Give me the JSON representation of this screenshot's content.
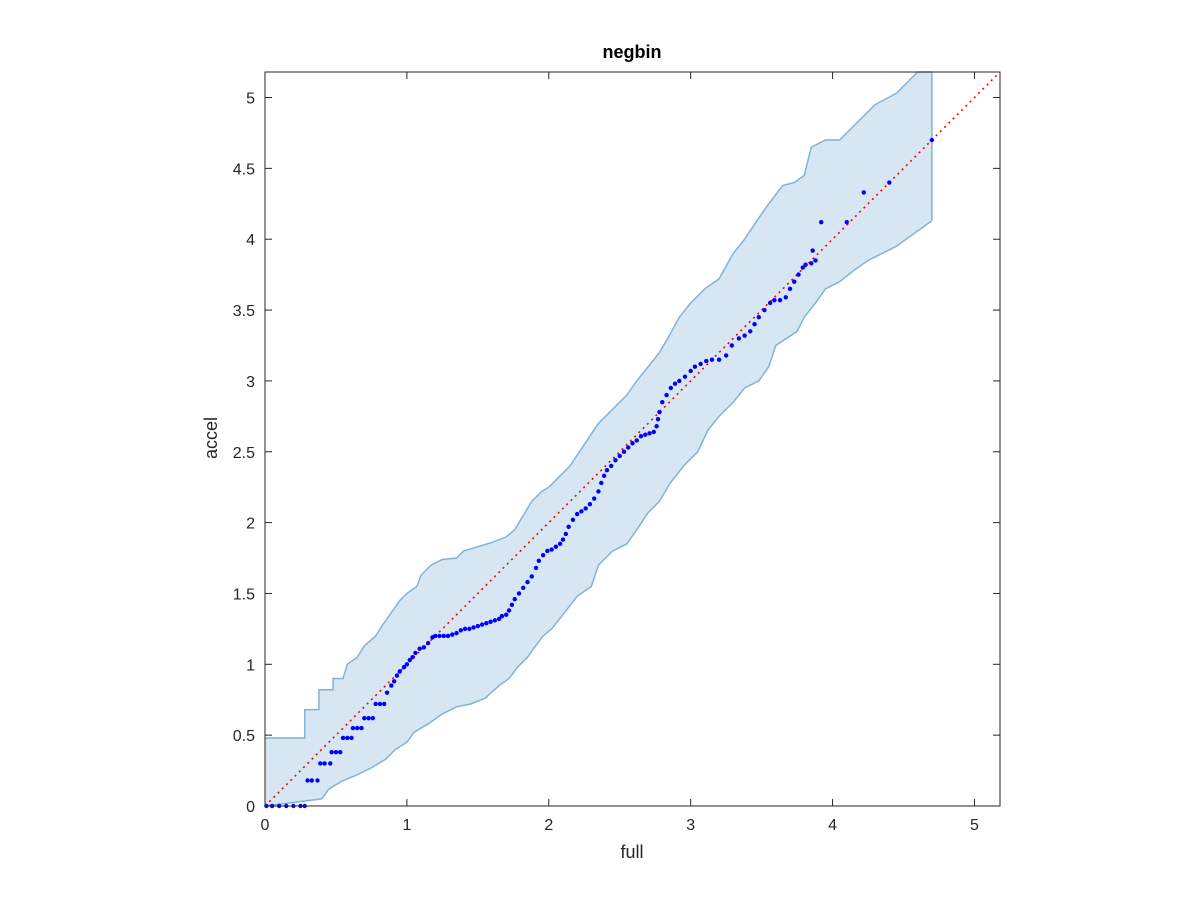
{
  "chart_data": {
    "type": "scatter",
    "title": "negbin",
    "xlabel": "full",
    "ylabel": "accel",
    "xlim": [
      0,
      5.18
    ],
    "ylim": [
      0,
      5.18
    ],
    "xticks": [
      0,
      1,
      2,
      3,
      4,
      5
    ],
    "xtick_labels": [
      "0",
      "1",
      "2",
      "3",
      "4",
      "5"
    ],
    "yticks": [
      0,
      0.5,
      1,
      1.5,
      2,
      2.5,
      3,
      3.5,
      4,
      4.5,
      5
    ],
    "ytick_labels": [
      "0",
      "0.5",
      "1",
      "1.5",
      "2",
      "2.5",
      "3",
      "3.5",
      "4",
      "4.5",
      "5"
    ],
    "grid": false,
    "reference_line": {
      "from": [
        0,
        0
      ],
      "to": [
        5.18,
        5.18
      ],
      "style": "dotted",
      "color": "#ff0000"
    },
    "confidence_band": {
      "fill_color": "#d6e6f3",
      "edge_color": "#7fb4d8",
      "upper": [
        [
          0,
          0.48
        ],
        [
          0.28,
          0.48
        ],
        [
          0.28,
          0.68
        ],
        [
          0.38,
          0.68
        ],
        [
          0.38,
          0.82
        ],
        [
          0.48,
          0.82
        ],
        [
          0.48,
          0.9
        ],
        [
          0.55,
          0.9
        ],
        [
          0.58,
          1.0
        ],
        [
          0.65,
          1.05
        ],
        [
          0.7,
          1.13
        ],
        [
          0.78,
          1.2
        ],
        [
          0.83,
          1.28
        ],
        [
          0.88,
          1.35
        ],
        [
          0.95,
          1.45
        ],
        [
          1.0,
          1.5
        ],
        [
          1.07,
          1.55
        ],
        [
          1.1,
          1.63
        ],
        [
          1.17,
          1.7
        ],
        [
          1.25,
          1.74
        ],
        [
          1.35,
          1.75
        ],
        [
          1.4,
          1.8
        ],
        [
          1.5,
          1.83
        ],
        [
          1.6,
          1.86
        ],
        [
          1.7,
          1.9
        ],
        [
          1.76,
          1.95
        ],
        [
          1.82,
          2.05
        ],
        [
          1.88,
          2.15
        ],
        [
          1.95,
          2.22
        ],
        [
          2.0,
          2.25
        ],
        [
          2.05,
          2.3
        ],
        [
          2.15,
          2.4
        ],
        [
          2.25,
          2.55
        ],
        [
          2.35,
          2.7
        ],
        [
          2.45,
          2.8
        ],
        [
          2.55,
          2.9
        ],
        [
          2.62,
          3.0
        ],
        [
          2.7,
          3.1
        ],
        [
          2.78,
          3.2
        ],
        [
          2.85,
          3.32
        ],
        [
          2.92,
          3.45
        ],
        [
          3.0,
          3.55
        ],
        [
          3.1,
          3.65
        ],
        [
          3.2,
          3.72
        ],
        [
          3.3,
          3.9
        ],
        [
          3.38,
          4.0
        ],
        [
          3.48,
          4.15
        ],
        [
          3.55,
          4.25
        ],
        [
          3.65,
          4.38
        ],
        [
          3.73,
          4.4
        ],
        [
          3.8,
          4.45
        ],
        [
          3.85,
          4.65
        ],
        [
          3.95,
          4.7
        ],
        [
          4.05,
          4.7
        ],
        [
          4.2,
          4.85
        ],
        [
          4.3,
          4.95
        ],
        [
          4.45,
          5.03
        ],
        [
          4.6,
          5.18
        ],
        [
          4.7,
          5.18
        ]
      ],
      "lower": [
        [
          0,
          0
        ],
        [
          0.4,
          0.05
        ],
        [
          0.45,
          0.12
        ],
        [
          0.55,
          0.18
        ],
        [
          0.65,
          0.22
        ],
        [
          0.75,
          0.27
        ],
        [
          0.85,
          0.33
        ],
        [
          0.92,
          0.4
        ],
        [
          1.0,
          0.45
        ],
        [
          1.05,
          0.52
        ],
        [
          1.15,
          0.58
        ],
        [
          1.25,
          0.65
        ],
        [
          1.35,
          0.7
        ],
        [
          1.45,
          0.72
        ],
        [
          1.55,
          0.76
        ],
        [
          1.65,
          0.85
        ],
        [
          1.72,
          0.9
        ],
        [
          1.78,
          0.98
        ],
        [
          1.85,
          1.05
        ],
        [
          1.9,
          1.12
        ],
        [
          1.96,
          1.2
        ],
        [
          2.02,
          1.25
        ],
        [
          2.1,
          1.35
        ],
        [
          2.2,
          1.48
        ],
        [
          2.3,
          1.55
        ],
        [
          2.35,
          1.7
        ],
        [
          2.45,
          1.8
        ],
        [
          2.55,
          1.85
        ],
        [
          2.62,
          1.95
        ],
        [
          2.7,
          2.07
        ],
        [
          2.78,
          2.15
        ],
        [
          2.85,
          2.27
        ],
        [
          2.95,
          2.4
        ],
        [
          3.05,
          2.5
        ],
        [
          3.12,
          2.65
        ],
        [
          3.2,
          2.75
        ],
        [
          3.3,
          2.85
        ],
        [
          3.38,
          2.95
        ],
        [
          3.48,
          3.0
        ],
        [
          3.55,
          3.1
        ],
        [
          3.6,
          3.25
        ],
        [
          3.75,
          3.35
        ],
        [
          3.8,
          3.45
        ],
        [
          3.88,
          3.55
        ],
        [
          3.95,
          3.65
        ],
        [
          4.05,
          3.7
        ],
        [
          4.15,
          3.78
        ],
        [
          4.25,
          3.85
        ],
        [
          4.45,
          3.95
        ],
        [
          4.7,
          4.13
        ]
      ]
    },
    "series": [
      {
        "color": "#0000ff",
        "marker": "dot",
        "points": [
          [
            0.01,
            0.0
          ],
          [
            0.05,
            0.0
          ],
          [
            0.1,
            0.0
          ],
          [
            0.15,
            0.0
          ],
          [
            0.2,
            0.0
          ],
          [
            0.25,
            0.0
          ],
          [
            0.28,
            0.0
          ],
          [
            0.3,
            0.18
          ],
          [
            0.33,
            0.18
          ],
          [
            0.37,
            0.18
          ],
          [
            0.39,
            0.3
          ],
          [
            0.42,
            0.3
          ],
          [
            0.46,
            0.3
          ],
          [
            0.47,
            0.38
          ],
          [
            0.5,
            0.38
          ],
          [
            0.53,
            0.38
          ],
          [
            0.55,
            0.48
          ],
          [
            0.58,
            0.48
          ],
          [
            0.61,
            0.48
          ],
          [
            0.62,
            0.55
          ],
          [
            0.65,
            0.55
          ],
          [
            0.68,
            0.55
          ],
          [
            0.7,
            0.62
          ],
          [
            0.73,
            0.62
          ],
          [
            0.76,
            0.62
          ],
          [
            0.78,
            0.72
          ],
          [
            0.81,
            0.72
          ],
          [
            0.84,
            0.72
          ],
          [
            0.86,
            0.8
          ],
          [
            0.89,
            0.85
          ],
          [
            0.91,
            0.88
          ],
          [
            0.93,
            0.92
          ],
          [
            0.95,
            0.95
          ],
          [
            0.98,
            0.98
          ],
          [
            1.0,
            1.0
          ],
          [
            1.02,
            1.03
          ],
          [
            1.04,
            1.05
          ],
          [
            1.06,
            1.08
          ],
          [
            1.09,
            1.11
          ],
          [
            1.12,
            1.12
          ],
          [
            1.15,
            1.15
          ],
          [
            1.18,
            1.19
          ],
          [
            1.2,
            1.2
          ],
          [
            1.23,
            1.2
          ],
          [
            1.26,
            1.2
          ],
          [
            1.29,
            1.2
          ],
          [
            1.32,
            1.21
          ],
          [
            1.35,
            1.22
          ],
          [
            1.38,
            1.24
          ],
          [
            1.41,
            1.25
          ],
          [
            1.44,
            1.25
          ],
          [
            1.47,
            1.26
          ],
          [
            1.5,
            1.27
          ],
          [
            1.53,
            1.28
          ],
          [
            1.56,
            1.29
          ],
          [
            1.59,
            1.3
          ],
          [
            1.62,
            1.31
          ],
          [
            1.65,
            1.32
          ],
          [
            1.67,
            1.34
          ],
          [
            1.7,
            1.35
          ],
          [
            1.72,
            1.38
          ],
          [
            1.74,
            1.42
          ],
          [
            1.76,
            1.46
          ],
          [
            1.79,
            1.5
          ],
          [
            1.82,
            1.54
          ],
          [
            1.85,
            1.58
          ],
          [
            1.88,
            1.62
          ],
          [
            1.91,
            1.68
          ],
          [
            1.93,
            1.73
          ],
          [
            1.96,
            1.77
          ],
          [
            1.99,
            1.8
          ],
          [
            2.02,
            1.81
          ],
          [
            2.05,
            1.83
          ],
          [
            2.08,
            1.85
          ],
          [
            2.1,
            1.88
          ],
          [
            2.12,
            1.92
          ],
          [
            2.14,
            1.97
          ],
          [
            2.17,
            2.02
          ],
          [
            2.2,
            2.06
          ],
          [
            2.23,
            2.08
          ],
          [
            2.26,
            2.1
          ],
          [
            2.29,
            2.13
          ],
          [
            2.32,
            2.17
          ],
          [
            2.35,
            2.22
          ],
          [
            2.37,
            2.28
          ],
          [
            2.39,
            2.33
          ],
          [
            2.41,
            2.37
          ],
          [
            2.44,
            2.4
          ],
          [
            2.47,
            2.44
          ],
          [
            2.5,
            2.47
          ],
          [
            2.53,
            2.5
          ],
          [
            2.56,
            2.53
          ],
          [
            2.59,
            2.56
          ],
          [
            2.62,
            2.58
          ],
          [
            2.65,
            2.61
          ],
          [
            2.68,
            2.62
          ],
          [
            2.71,
            2.63
          ],
          [
            2.74,
            2.64
          ],
          [
            2.76,
            2.68
          ],
          [
            2.77,
            2.73
          ],
          [
            2.78,
            2.78
          ],
          [
            2.8,
            2.85
          ],
          [
            2.83,
            2.9
          ],
          [
            2.86,
            2.95
          ],
          [
            2.89,
            2.98
          ],
          [
            2.92,
            3.0
          ],
          [
            2.96,
            3.03
          ],
          [
            3.0,
            3.07
          ],
          [
            3.03,
            3.1
          ],
          [
            3.07,
            3.12
          ],
          [
            3.11,
            3.14
          ],
          [
            3.15,
            3.15
          ],
          [
            3.2,
            3.15
          ],
          [
            3.25,
            3.18
          ],
          [
            3.29,
            3.25
          ],
          [
            3.34,
            3.3
          ],
          [
            3.38,
            3.32
          ],
          [
            3.42,
            3.35
          ],
          [
            3.45,
            3.4
          ],
          [
            3.48,
            3.45
          ],
          [
            3.52,
            3.5
          ],
          [
            3.56,
            3.55
          ],
          [
            3.59,
            3.57
          ],
          [
            3.63,
            3.57
          ],
          [
            3.67,
            3.59
          ],
          [
            3.7,
            3.65
          ],
          [
            3.73,
            3.7
          ],
          [
            3.76,
            3.75
          ],
          [
            3.79,
            3.8
          ],
          [
            3.81,
            3.82
          ],
          [
            3.85,
            3.83
          ],
          [
            3.88,
            3.85
          ],
          [
            3.86,
            3.92
          ],
          [
            3.92,
            4.12
          ],
          [
            4.1,
            4.12
          ],
          [
            4.22,
            4.33
          ],
          [
            4.4,
            4.4
          ],
          [
            4.7,
            4.7
          ]
        ]
      }
    ]
  }
}
